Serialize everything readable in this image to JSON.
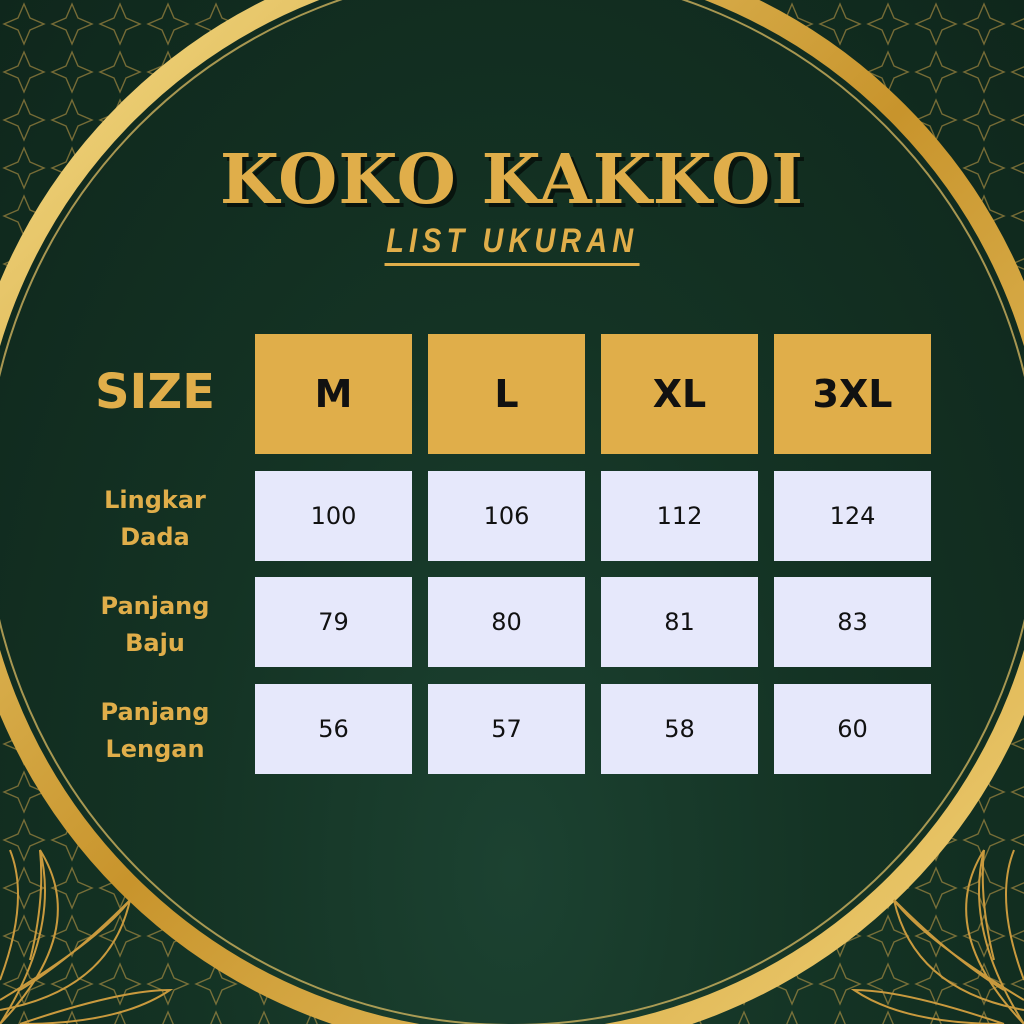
{
  "title": "KOKO KAKKOI",
  "subtitle": "LIST UKURAN",
  "colors": {
    "background": "#143324",
    "gold": "#e0ae4a",
    "cell": "#e6e8fb"
  },
  "table": {
    "size_label": "SIZE",
    "sizes": [
      "M",
      "L",
      "XL",
      "3XL"
    ],
    "rows": [
      {
        "label_1": "Lingkar",
        "label_2": "Dada",
        "values": [
          "100",
          "106",
          "112",
          "124"
        ]
      },
      {
        "label_1": "Panjang",
        "label_2": "Baju",
        "values": [
          "79",
          "80",
          "81",
          "83"
        ]
      },
      {
        "label_1": "Panjang",
        "label_2": "Lengan",
        "values": [
          "56",
          "57",
          "58",
          "60"
        ]
      }
    ]
  }
}
